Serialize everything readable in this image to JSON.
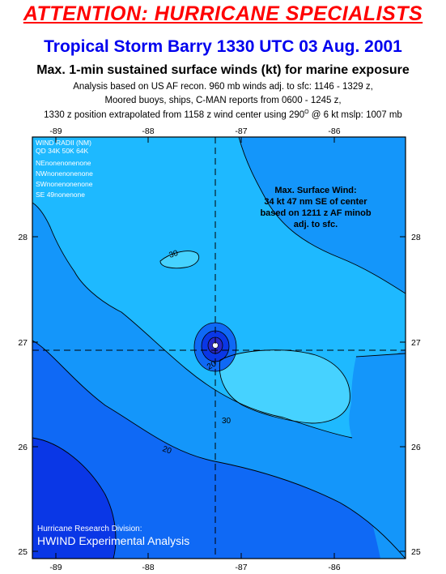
{
  "header": {
    "attention": "ATTENTION: HURRICANE SPECIALISTS",
    "storm_title": "Tropical Storm Barry 1330 UTC 03 Aug. 2001",
    "subtitle": "Max. 1-min sustained surface winds (kt) for marine exposure",
    "info_line1": "Analysis based on US AF recon. 960 mb winds adj. to sfc: 1146 - 1329 z,",
    "info_line2": "Moored buoys, ships, C-MAN reports from  0600 - 1245 z,",
    "info_line3_a": "1330 z position extrapolated from 1158 z wind center using  290",
    "info_line3_sup": "O",
    "info_line3_b": " @ 6 kt  mslp: 1007 mb"
  },
  "map": {
    "lon_labels": [
      "-89",
      "-88",
      "-87",
      "-86"
    ],
    "lat_labels": [
      "28",
      "27",
      "26",
      "25"
    ],
    "center": {
      "lon": -87.25,
      "lat": 26.93
    }
  },
  "wind_radii": {
    "title": "WIND RADII (NM)",
    "header": "QD  34K 50K 64K",
    "rows": [
      "NEnonenonenone",
      "NWnonenonenone",
      "SWnonenonenone",
      "SE   49nonenone"
    ]
  },
  "max_wind_note": {
    "line1": "Max. Surface Wind:",
    "line2": "34 kt 47 nm SE of center",
    "line3": "based on   1211 z AF minob",
    "line4": "adj. to sfc."
  },
  "contour_labels": {
    "c30_nw": "30",
    "c20_center": "20",
    "c30_east": "30",
    "c20_sw": "20"
  },
  "credit": {
    "division": "Hurricane Research Division:",
    "product": "HWIND Experimental Analysis"
  },
  "colors": {
    "attention": "#ff0000",
    "title": "#0000ee",
    "band_10": "#0a37e6",
    "band_15": "#0f69f5",
    "band_20": "#1496fa",
    "band_25": "#1eb9ff",
    "band_30": "#46d2ff",
    "eye_ring": "#2828c8"
  }
}
